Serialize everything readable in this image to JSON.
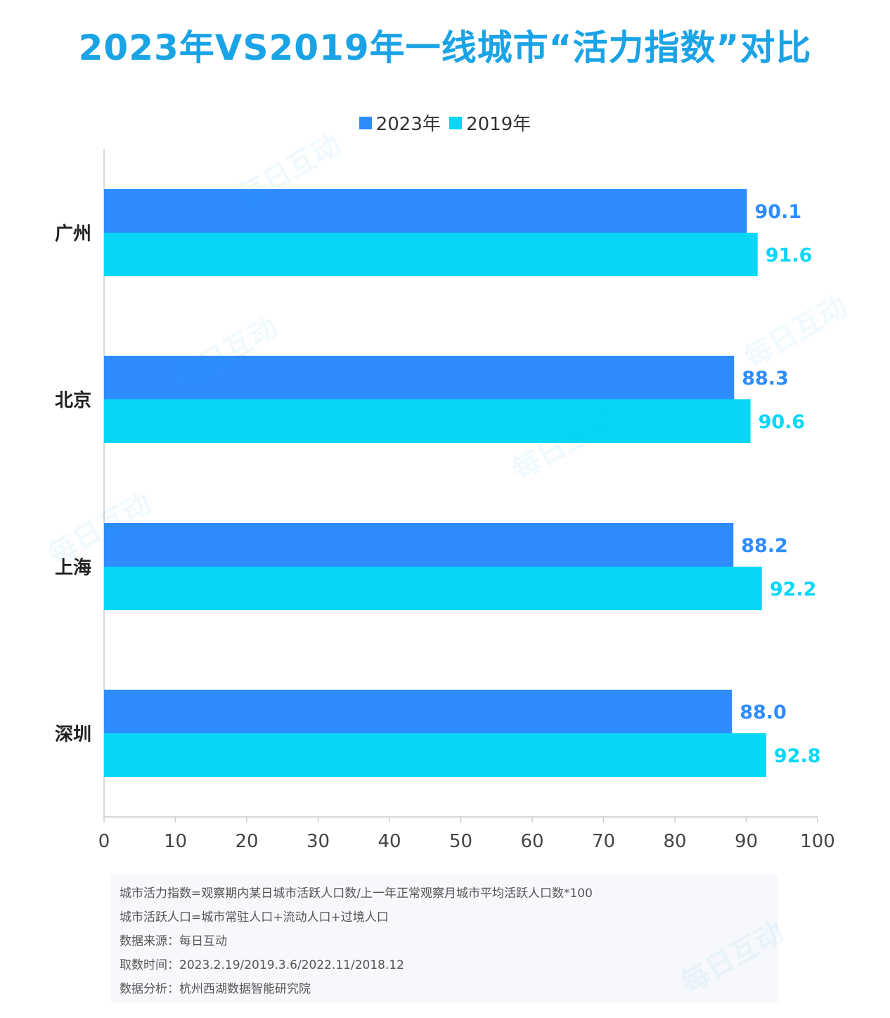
{
  "title": "2023年VS2019年一线城市“活力指数”对比",
  "legend": [
    {
      "label": "2023年",
      "color": "#2e8cff"
    },
    {
      "label": "2019年",
      "color": "#06d7f7"
    }
  ],
  "chart_data": {
    "type": "bar",
    "orientation": "horizontal",
    "title": "2023年VS2019年一线城市“活力指数”对比",
    "categories": [
      "广州",
      "北京",
      "上海",
      "深圳"
    ],
    "series": [
      {
        "name": "2023年",
        "values": [
          90.1,
          88.3,
          88.2,
          88.0
        ],
        "labels": [
          "90.1",
          "88.3",
          "88.2",
          "88.0"
        ],
        "color": "#2e8cff"
      },
      {
        "name": "2019年",
        "values": [
          91.6,
          90.6,
          92.2,
          92.8
        ],
        "labels": [
          "91.6",
          "90.6",
          "92.2",
          "92.8"
        ],
        "color": "#06d7f7"
      }
    ],
    "xlim": [
      0,
      100
    ],
    "xticks": [
      "0",
      "10",
      "20",
      "30",
      "40",
      "50",
      "60",
      "70",
      "80",
      "90",
      "100"
    ],
    "grid": false,
    "legend_position": "top-center"
  },
  "notes": [
    "城市活力指数=观察期内某日城市活跃人口数/上一年正常观察月城市平均活跃人口数*100",
    "城市活跃人口=城市常驻人口+流动人口+过境人口",
    "数据来源：每日互动",
    "取数时间：2023.2.19/2019.3.6/2022.11/2018.12",
    "数据分析：杭州西湖数据智能研究院"
  ],
  "watermark": "每日互动"
}
